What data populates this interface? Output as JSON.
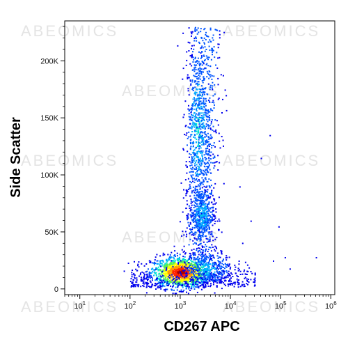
{
  "watermark_text": "ABEOMICS",
  "chart_data": {
    "type": "scatter",
    "subtype": "flow-cytometry-density-dot-plot",
    "title": "",
    "xlabel": "CD267 APC",
    "ylabel": "Side Scatter",
    "x_scale": "log",
    "xlim": [
      5,
      1200000
    ],
    "x_ticks": [
      {
        "value": 10,
        "base": "10",
        "exp": "1"
      },
      {
        "value": 100,
        "base": "10",
        "exp": "2"
      },
      {
        "value": 1000,
        "base": "10",
        "exp": "3"
      },
      {
        "value": 10000,
        "base": "10",
        "exp": "4"
      },
      {
        "value": 100000,
        "base": "10",
        "exp": "5"
      },
      {
        "value": 1000000,
        "base": "10",
        "exp": "6"
      }
    ],
    "ylim": [
      -5000,
      235000
    ],
    "y_ticks": [
      {
        "value": 0,
        "label": "0"
      },
      {
        "value": 50000,
        "label": "50K"
      },
      {
        "value": 100000,
        "label": "100K"
      },
      {
        "value": 150000,
        "label": "150K"
      },
      {
        "value": 200000,
        "label": "200K"
      }
    ],
    "grid": false,
    "legend": "none",
    "density_colors": [
      "#0000ee",
      "#0055ff",
      "#00aaff",
      "#00e0d0",
      "#55ee55",
      "#ffff00",
      "#ff9900",
      "#ff2200",
      "#aa0000"
    ],
    "populations": [
      {
        "x_center": 1000,
        "y_center": 15000,
        "x_spread_log": 0.3,
        "y_spread": 7000,
        "relative_density": 1.0
      },
      {
        "x_center": 2600,
        "y_center": 65000,
        "x_spread_log": 0.12,
        "y_spread": 12000,
        "relative_density": 0.35
      },
      {
        "x_center": 2200,
        "y_center": 140000,
        "x_spread_log": 0.12,
        "y_spread": 35000,
        "relative_density": 0.4
      },
      {
        "x_center": 3500,
        "y_center": 18000,
        "x_spread_log": 0.25,
        "y_spread": 8000,
        "relative_density": 0.3
      }
    ],
    "outliers": [
      [
        60000,
        135000
      ],
      [
        40000,
        115000
      ],
      [
        90000,
        55000
      ],
      [
        15000,
        90000
      ],
      [
        70000,
        25000
      ],
      [
        120000,
        28000
      ],
      [
        30000,
        10000
      ],
      [
        8000,
        170000
      ],
      [
        150000,
        18000
      ],
      [
        25000,
        60000
      ],
      [
        500000,
        28000
      ]
    ]
  }
}
